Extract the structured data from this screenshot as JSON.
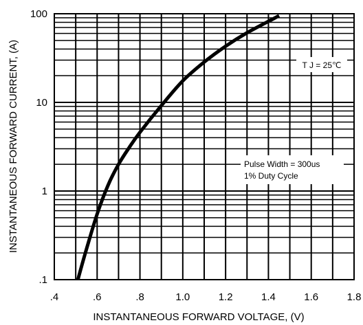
{
  "chart_data": {
    "type": "line",
    "title": "",
    "xlabel": "INSTANTANEOUS FORWARD VOLTAGE, (V)",
    "ylabel": "INSTANTANEOUS FORWARD CURRENT, (A)",
    "x_scale": "linear",
    "y_scale": "log",
    "xlim": [
      0.4,
      1.8
    ],
    "ylim": [
      0.1,
      100
    ],
    "x_ticks": [
      ".4",
      ".6",
      ".8",
      "1.0",
      "1.2",
      "1.4",
      "1.6",
      "1.8"
    ],
    "x_tick_values": [
      0.4,
      0.6,
      0.8,
      1.0,
      1.2,
      1.4,
      1.6,
      1.8
    ],
    "y_ticks": [
      ".1",
      "1",
      "10",
      "100"
    ],
    "y_tick_values": [
      0.1,
      1,
      10,
      100
    ],
    "grid": true,
    "annotations": [
      "T J = 25℃",
      "Pulse Width = 300us",
      "1% Duty Cycle"
    ],
    "series": [
      {
        "x": [
          0.51,
          0.55,
          0.6,
          0.65,
          0.7,
          0.75,
          0.8,
          0.9,
          1.0,
          1.1,
          1.2,
          1.3,
          1.4,
          1.45
        ],
        "y": [
          0.1,
          0.22,
          0.55,
          1.15,
          2.0,
          3.1,
          4.6,
          9.2,
          17.5,
          28.5,
          43,
          61,
          82,
          95
        ]
      }
    ]
  }
}
